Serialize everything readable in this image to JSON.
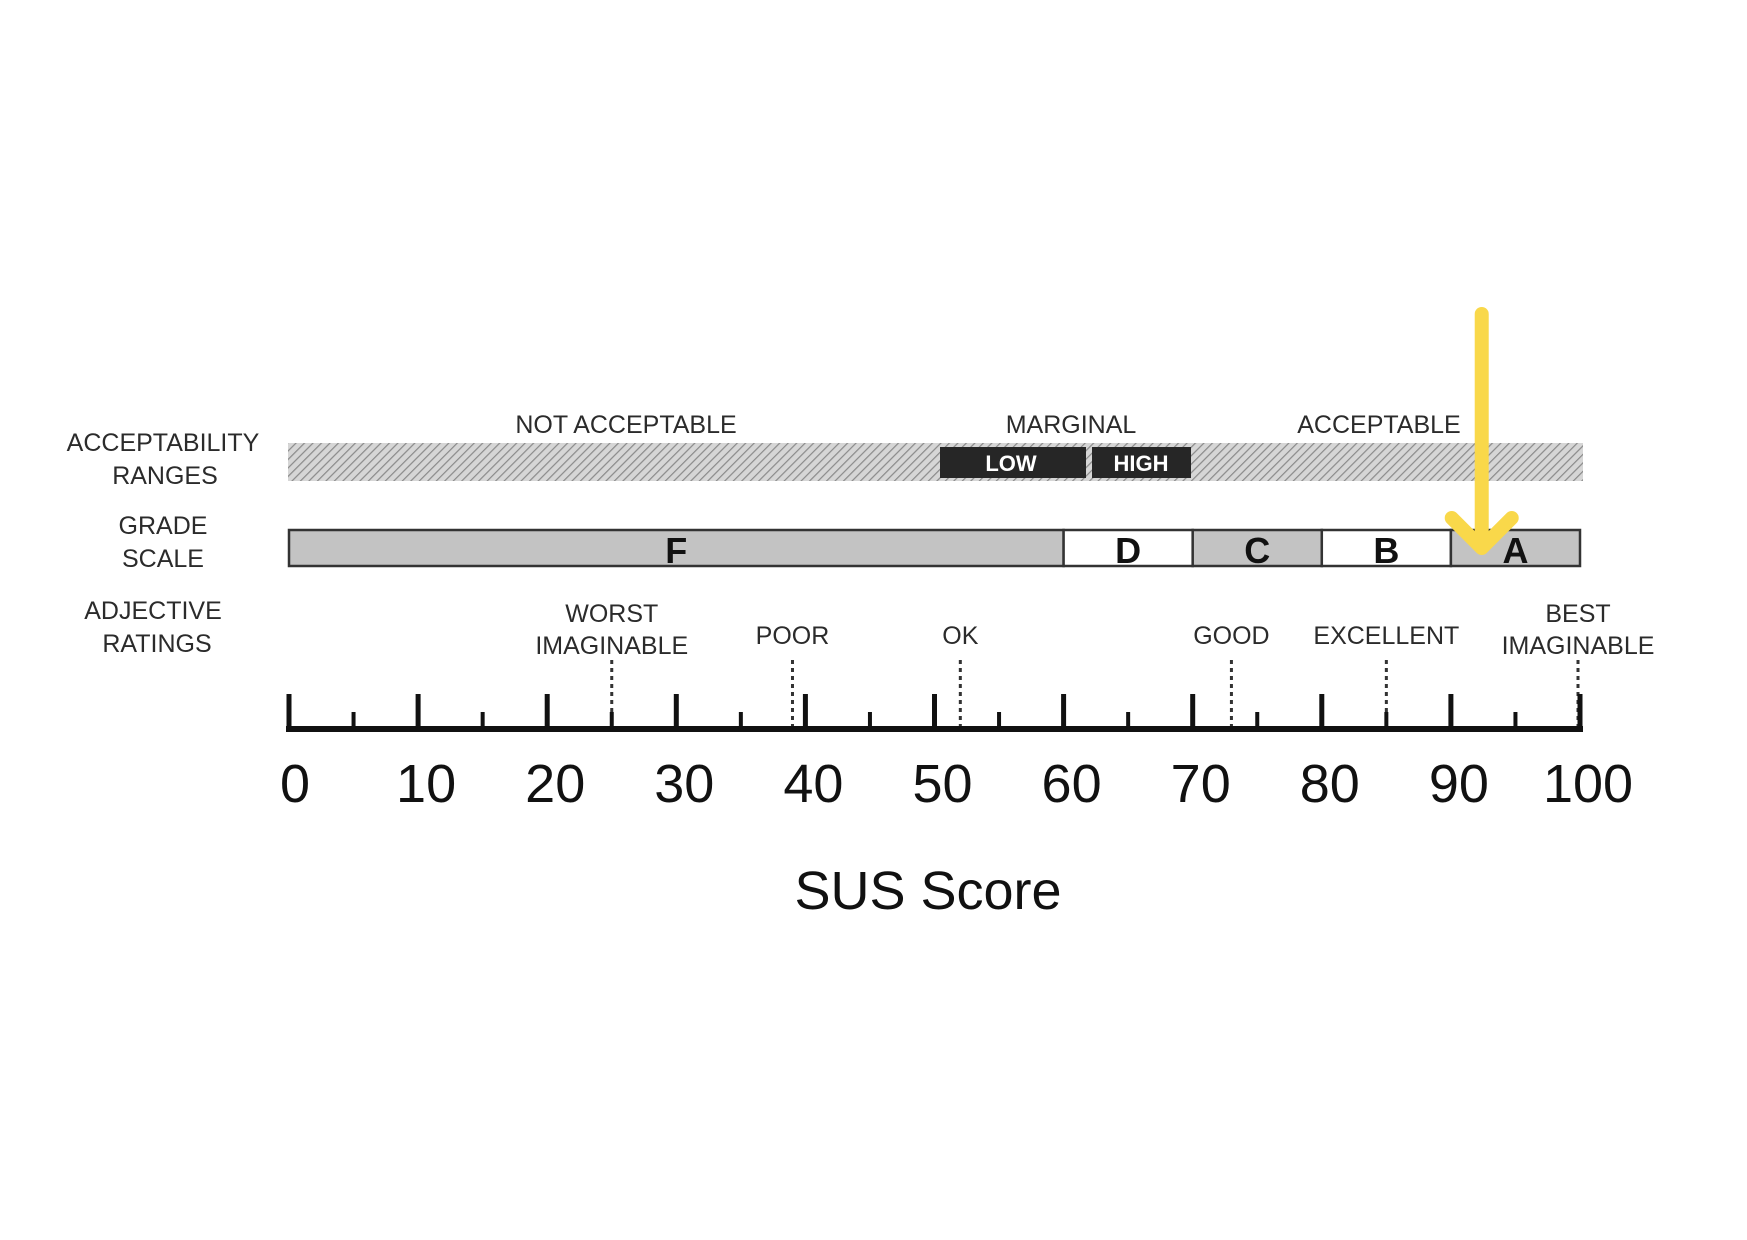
{
  "row_labels": {
    "acceptability": [
      "ACCEPTABILITY",
      "RANGES"
    ],
    "grade": [
      "GRADE",
      "SCALE"
    ],
    "adjective": [
      "ADJECTIVE",
      "RATINGS"
    ]
  },
  "acceptability": {
    "not_acceptable": "NOT  ACCEPTABLE",
    "marginal": "MARGINAL",
    "low": "LOW",
    "high": "HIGH",
    "acceptable": "ACCEPTABLE"
  },
  "grades": [
    {
      "label": "F",
      "from": 0,
      "to": 60,
      "fill": "#c3c3c3"
    },
    {
      "label": "D",
      "from": 60,
      "to": 70,
      "fill": "#ffffff"
    },
    {
      "label": "C",
      "from": 70,
      "to": 80,
      "fill": "#c3c3c3"
    },
    {
      "label": "B",
      "from": 80,
      "to": 90,
      "fill": "#ffffff"
    },
    {
      "label": "A",
      "from": 90,
      "to": 100,
      "fill": "#c3c3c3"
    }
  ],
  "adjectives": [
    {
      "lines": [
        "WORST",
        "IMAGINABLE"
      ],
      "score": 25
    },
    {
      "lines": [
        "POOR"
      ],
      "score": 39
    },
    {
      "lines": [
        "OK"
      ],
      "score": 52
    },
    {
      "lines": [
        "GOOD"
      ],
      "score": 73
    },
    {
      "lines": [
        "EXCELLENT"
      ],
      "score": 85
    },
    {
      "lines": [
        "BEST",
        "IMAGINABLE"
      ],
      "score": 100
    }
  ],
  "axis": {
    "ticks": [
      "0",
      "10",
      "20",
      "30",
      "40",
      "50",
      "60",
      "70",
      "80",
      "90",
      "100"
    ],
    "title": "SUS Score",
    "range": [
      0,
      100
    ]
  },
  "marker": {
    "score": 92,
    "color": "#f9d84a"
  }
}
